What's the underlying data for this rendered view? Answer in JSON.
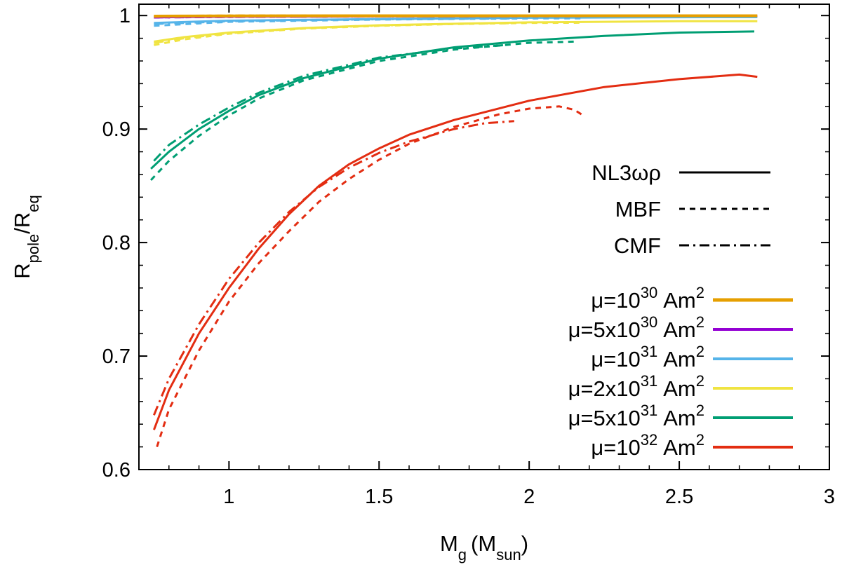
{
  "chart_data": {
    "type": "line",
    "xlabel": {
      "main": "M",
      "sub": "g",
      "unit_main": "M",
      "unit_sub": "sun"
    },
    "ylabel": {
      "num_main": "R",
      "num_sub": "pole",
      "den_main": "R",
      "den_sub": "eq"
    },
    "xlim": [
      0.7,
      3.0
    ],
    "ylim": [
      0.6,
      1.01
    ],
    "xticks": [
      1,
      1.5,
      2,
      2.5,
      3
    ],
    "xtick_labels": [
      "1",
      "1.5",
      "2",
      "2.5",
      "3"
    ],
    "yticks": [
      0.6,
      0.7,
      0.8,
      0.9,
      1
    ],
    "ytick_labels": [
      "0.6",
      "0.7",
      "0.8",
      "0.9",
      "1"
    ],
    "style_legend": [
      {
        "label": "NL3ωρ",
        "dash": "solid"
      },
      {
        "label": "MBF",
        "dash": "dashed"
      },
      {
        "label": "CMF",
        "dash": "dashdot"
      }
    ],
    "series": [
      {
        "name": "μ=10^30 Am^2",
        "mu_prefix": "μ=10",
        "mu_exp": "30",
        "color": "#e69f00",
        "width": 4,
        "eos": "NL3ωρ",
        "dash": "solid",
        "x": [
          0.75,
          1.0,
          1.5,
          2.0,
          2.5,
          2.76
        ],
        "y": [
          0.9995,
          0.9997,
          0.9998,
          0.9998,
          0.9998,
          0.9998
        ]
      },
      {
        "name": "μ=10^30 Am^2",
        "color": "#e69f00",
        "width": 4,
        "eos": "MBF",
        "dash": "dashed",
        "x": [
          0.75,
          1.0,
          1.5,
          2.0,
          2.18
        ],
        "y": [
          0.9994,
          0.9996,
          0.9997,
          0.9997,
          0.9997
        ]
      },
      {
        "name": "μ=10^30 Am^2",
        "color": "#e69f00",
        "width": 4,
        "eos": "CMF",
        "dash": "dashdot",
        "x": [
          0.75,
          1.0,
          1.5,
          1.95
        ],
        "y": [
          0.9994,
          0.9996,
          0.9997,
          0.9997
        ]
      },
      {
        "name": "μ=5x10^30 Am^2",
        "mu_prefix": "μ=5x10",
        "mu_exp": "30",
        "color": "#9400d3",
        "width": 3,
        "eos": "NL3ωρ",
        "dash": "solid",
        "x": [
          0.75,
          1.0,
          1.5,
          2.0,
          2.5,
          2.76
        ],
        "y": [
          0.9985,
          0.999,
          0.9993,
          0.9995,
          0.9996,
          0.9996
        ]
      },
      {
        "name": "μ=5x10^30 Am^2",
        "color": "#9400d3",
        "width": 3,
        "eos": "MBF",
        "dash": "dashed",
        "x": [
          0.75,
          1.0,
          1.5,
          2.0,
          2.18
        ],
        "y": [
          0.9983,
          0.9988,
          0.9992,
          0.9994,
          0.9994
        ]
      },
      {
        "name": "μ=5x10^30 Am^2",
        "color": "#9400d3",
        "width": 3,
        "eos": "CMF",
        "dash": "dashdot",
        "x": [
          0.75,
          1.0,
          1.5,
          1.95
        ],
        "y": [
          0.9983,
          0.9988,
          0.9992,
          0.9993
        ]
      },
      {
        "name": "μ=10^31 Am^2",
        "mu_prefix": "μ=10",
        "mu_exp": "31",
        "color": "#56b4e9",
        "width": 3,
        "eos": "NL3ωρ",
        "dash": "solid",
        "x": [
          0.75,
          1.0,
          1.5,
          2.0,
          2.5,
          2.76
        ],
        "y": [
          0.9935,
          0.9955,
          0.997,
          0.998,
          0.9985,
          0.9986
        ]
      },
      {
        "name": "μ=10^31 Am^2",
        "color": "#56b4e9",
        "width": 3,
        "eos": "MBF",
        "dash": "dashed",
        "x": [
          0.75,
          1.0,
          1.5,
          2.0,
          2.18
        ],
        "y": [
          0.991,
          0.9945,
          0.9965,
          0.9975,
          0.9976
        ]
      },
      {
        "name": "μ=10^31 Am^2",
        "color": "#56b4e9",
        "width": 3,
        "eos": "CMF",
        "dash": "dashdot",
        "x": [
          0.75,
          1.0,
          1.5,
          1.95
        ],
        "y": [
          0.9925,
          0.995,
          0.9967,
          0.9975
        ]
      },
      {
        "name": "μ=2x10^31 Am^2",
        "mu_prefix": "μ=2x10",
        "mu_exp": "31",
        "color": "#f0e442",
        "width": 3,
        "eos": "NL3ωρ",
        "dash": "solid",
        "x": [
          0.75,
          0.85,
          1.0,
          1.25,
          1.5,
          2.0,
          2.5,
          2.76
        ],
        "y": [
          0.977,
          0.981,
          0.985,
          0.989,
          0.9915,
          0.994,
          0.995,
          0.995
        ]
      },
      {
        "name": "μ=2x10^31 Am^2",
        "color": "#f0e442",
        "width": 3,
        "eos": "MBF",
        "dash": "dashed",
        "x": [
          0.75,
          0.85,
          1.0,
          1.25,
          1.5,
          1.75,
          2.0,
          2.18
        ],
        "y": [
          0.974,
          0.979,
          0.984,
          0.9885,
          0.991,
          0.9925,
          0.9935,
          0.9937
        ]
      },
      {
        "name": "μ=2x10^31 Am^2",
        "color": "#f0e442",
        "width": 3,
        "eos": "CMF",
        "dash": "dashdot",
        "x": [
          0.75,
          0.85,
          1.0,
          1.25,
          1.5,
          1.75,
          1.95
        ],
        "y": [
          0.976,
          0.98,
          0.9845,
          0.9888,
          0.9912,
          0.9927,
          0.9933
        ]
      },
      {
        "name": "μ=5x10^31 Am^2",
        "mu_prefix": "μ=5x10",
        "mu_exp": "31",
        "color": "#009e73",
        "width": 3,
        "eos": "NL3ωρ",
        "dash": "solid",
        "x": [
          0.74,
          0.8,
          0.9,
          1.0,
          1.1,
          1.25,
          1.5,
          1.75,
          2.0,
          2.25,
          2.5,
          2.75
        ],
        "y": [
          0.865,
          0.88,
          0.9,
          0.916,
          0.93,
          0.945,
          0.962,
          0.972,
          0.978,
          0.982,
          0.985,
          0.986
        ]
      },
      {
        "name": "μ=5x10^31 Am^2",
        "color": "#009e73",
        "width": 3,
        "eos": "MBF",
        "dash": "dashed",
        "x": [
          0.74,
          0.8,
          0.9,
          1.0,
          1.1,
          1.25,
          1.5,
          1.75,
          2.0,
          2.15
        ],
        "y": [
          0.855,
          0.872,
          0.894,
          0.912,
          0.927,
          0.943,
          0.96,
          0.97,
          0.976,
          0.977
        ]
      },
      {
        "name": "μ=5x10^31 Am^2",
        "color": "#009e73",
        "width": 3,
        "eos": "CMF",
        "dash": "dashdot",
        "x": [
          0.75,
          0.8,
          0.9,
          1.0,
          1.1,
          1.25,
          1.5,
          1.75,
          1.92
        ],
        "y": [
          0.872,
          0.886,
          0.904,
          0.919,
          0.932,
          0.947,
          0.963,
          0.971,
          0.974
        ]
      },
      {
        "name": "μ=10^32 Am^2",
        "mu_prefix": "μ=10",
        "mu_exp": "32",
        "color": "#e32d12",
        "width": 3,
        "eos": "NL3ωρ",
        "dash": "solid",
        "x": [
          0.75,
          0.8,
          0.9,
          1.0,
          1.1,
          1.2,
          1.3,
          1.4,
          1.5,
          1.6,
          1.75,
          2.0,
          2.25,
          2.5,
          2.7,
          2.76
        ],
        "y": [
          0.635,
          0.67,
          0.72,
          0.76,
          0.795,
          0.825,
          0.85,
          0.869,
          0.883,
          0.895,
          0.908,
          0.925,
          0.937,
          0.944,
          0.948,
          0.946
        ]
      },
      {
        "name": "μ=10^32 Am^2",
        "color": "#e32d12",
        "width": 3,
        "eos": "MBF",
        "dash": "dashed",
        "x": [
          0.76,
          0.8,
          0.9,
          1.0,
          1.1,
          1.2,
          1.3,
          1.4,
          1.5,
          1.6,
          1.75,
          1.9,
          2.0,
          2.1,
          2.15,
          2.18
        ],
        "y": [
          0.62,
          0.653,
          0.705,
          0.748,
          0.782,
          0.81,
          0.836,
          0.856,
          0.873,
          0.887,
          0.902,
          0.913,
          0.918,
          0.92,
          0.917,
          0.912
        ]
      },
      {
        "name": "μ=10^32 Am^2",
        "color": "#e32d12",
        "width": 3,
        "eos": "CMF",
        "dash": "dashdot",
        "x": [
          0.75,
          0.8,
          0.9,
          1.0,
          1.1,
          1.2,
          1.3,
          1.4,
          1.5,
          1.6,
          1.75,
          1.85,
          1.95
        ],
        "y": [
          0.648,
          0.68,
          0.728,
          0.768,
          0.8,
          0.827,
          0.849,
          0.866,
          0.879,
          0.889,
          0.9,
          0.905,
          0.907
        ]
      }
    ]
  }
}
